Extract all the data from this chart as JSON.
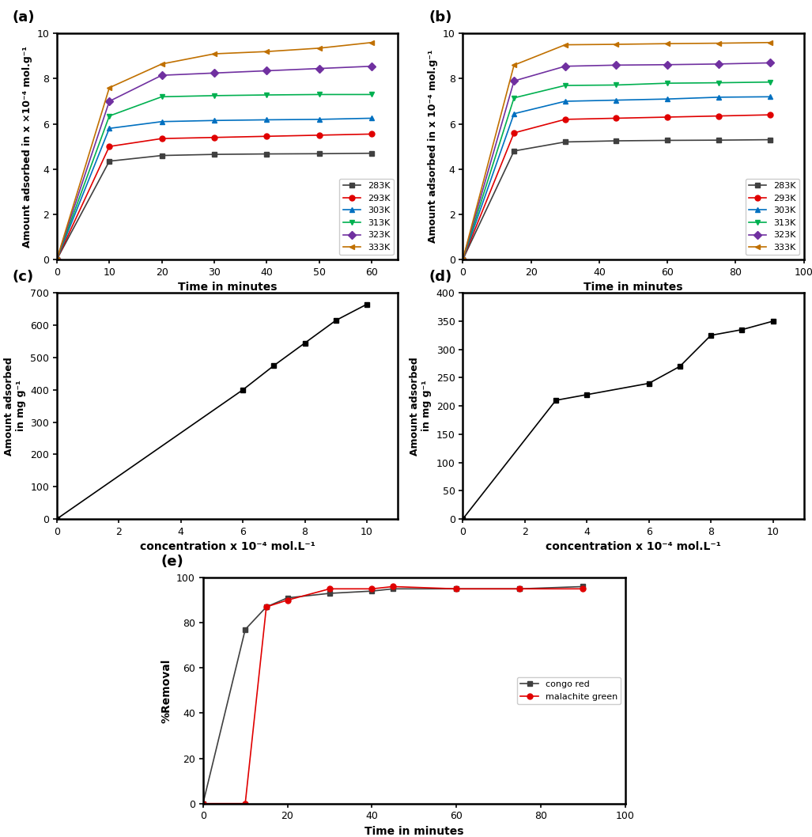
{
  "panel_a": {
    "title": "(a)",
    "xlabel": "Time in minutes",
    "ylabel": "Amount adsorbed in x ×10⁻⁴ mol.g⁻¹",
    "xlim": [
      0,
      65
    ],
    "ylim": [
      0,
      10
    ],
    "xticks": [
      0,
      10,
      20,
      30,
      40,
      50,
      60
    ],
    "yticks": [
      0,
      2,
      4,
      6,
      8,
      10
    ],
    "series": [
      {
        "label": "283K",
        "color": "#404040",
        "marker": "s",
        "x": [
          0,
          10,
          20,
          30,
          40,
          50,
          60
        ],
        "y": [
          0,
          4.35,
          4.6,
          4.65,
          4.67,
          4.68,
          4.7
        ]
      },
      {
        "label": "293K",
        "color": "#e00000",
        "marker": "o",
        "x": [
          0,
          10,
          20,
          30,
          40,
          50,
          60
        ],
        "y": [
          0,
          5.0,
          5.35,
          5.4,
          5.45,
          5.5,
          5.55
        ]
      },
      {
        "label": "303K",
        "color": "#0070c0",
        "marker": "^",
        "x": [
          0,
          10,
          20,
          30,
          40,
          50,
          60
        ],
        "y": [
          0,
          5.8,
          6.1,
          6.15,
          6.18,
          6.2,
          6.25
        ]
      },
      {
        "label": "313K",
        "color": "#00b050",
        "marker": "v",
        "x": [
          0,
          10,
          20,
          30,
          40,
          50,
          60
        ],
        "y": [
          0,
          6.35,
          7.2,
          7.25,
          7.28,
          7.3,
          7.3
        ]
      },
      {
        "label": "323K",
        "color": "#7030a0",
        "marker": "D",
        "x": [
          0,
          10,
          20,
          30,
          40,
          50,
          60
        ],
        "y": [
          0,
          7.0,
          8.15,
          8.25,
          8.35,
          8.45,
          8.55
        ]
      },
      {
        "label": "333K",
        "color": "#c07000",
        "marker": "<",
        "x": [
          0,
          10,
          20,
          30,
          40,
          50,
          60
        ],
        "y": [
          0,
          7.6,
          8.65,
          9.1,
          9.2,
          9.35,
          9.6
        ]
      }
    ]
  },
  "panel_b": {
    "title": "(b)",
    "xlabel": "Time in minutes",
    "ylabel": "Amount adsorbed in x 10⁻⁴ mol.g⁻¹",
    "xlim": [
      0,
      100
    ],
    "ylim": [
      0,
      10
    ],
    "xticks": [
      0,
      20,
      40,
      60,
      80,
      100
    ],
    "yticks": [
      0,
      2,
      4,
      6,
      8,
      10
    ],
    "series": [
      {
        "label": "283K",
        "color": "#404040",
        "marker": "s",
        "x": [
          0,
          15,
          30,
          45,
          60,
          75,
          90
        ],
        "y": [
          0,
          4.8,
          5.2,
          5.25,
          5.27,
          5.28,
          5.3
        ]
      },
      {
        "label": "293K",
        "color": "#e00000",
        "marker": "o",
        "x": [
          0,
          15,
          30,
          45,
          60,
          75,
          90
        ],
        "y": [
          0,
          5.6,
          6.2,
          6.25,
          6.3,
          6.35,
          6.4
        ]
      },
      {
        "label": "303K",
        "color": "#0070c0",
        "marker": "^",
        "x": [
          0,
          15,
          30,
          45,
          60,
          75,
          90
        ],
        "y": [
          0,
          6.45,
          7.0,
          7.05,
          7.1,
          7.18,
          7.2
        ]
      },
      {
        "label": "313K",
        "color": "#00b050",
        "marker": "v",
        "x": [
          0,
          15,
          30,
          45,
          60,
          75,
          90
        ],
        "y": [
          0,
          7.15,
          7.7,
          7.72,
          7.8,
          7.82,
          7.85
        ]
      },
      {
        "label": "323K",
        "color": "#7030a0",
        "marker": "D",
        "x": [
          0,
          15,
          30,
          45,
          60,
          75,
          90
        ],
        "y": [
          0,
          7.9,
          8.55,
          8.6,
          8.62,
          8.65,
          8.7
        ]
      },
      {
        "label": "333K",
        "color": "#c07000",
        "marker": "<",
        "x": [
          0,
          15,
          30,
          45,
          60,
          75,
          90
        ],
        "y": [
          0,
          8.6,
          9.5,
          9.52,
          9.55,
          9.57,
          9.6
        ]
      }
    ]
  },
  "panel_c": {
    "title": "(c)",
    "xlabel": "concentration x 10⁻⁴ mol.L⁻¹",
    "ylabel": "Amount adsorbed in mg g⁻¹",
    "xlim": [
      0,
      11
    ],
    "ylim": [
      0,
      700
    ],
    "xticks": [
      0,
      2,
      4,
      6,
      8,
      10
    ],
    "yticks": [
      0,
      100,
      200,
      300,
      400,
      500,
      600,
      700
    ],
    "x": [
      0,
      6,
      7,
      8,
      9,
      10
    ],
    "y": [
      0,
      400,
      475,
      545,
      615,
      665
    ]
  },
  "panel_d": {
    "title": "(d)",
    "xlabel": "concentration x 10⁻⁴ mol.L⁻¹",
    "ylabel": "Amount adsorbed in mg g⁻¹",
    "xlim": [
      0,
      11
    ],
    "ylim": [
      0,
      400
    ],
    "xticks": [
      0,
      2,
      4,
      6,
      8,
      10
    ],
    "yticks": [
      0,
      50,
      100,
      150,
      200,
      250,
      300,
      350,
      400
    ],
    "x": [
      0,
      3,
      4,
      6,
      7,
      8,
      9,
      10
    ],
    "y": [
      0,
      210,
      220,
      240,
      270,
      325,
      335,
      350
    ]
  },
  "panel_e": {
    "title": "(e)",
    "xlabel": "Time in minutes",
    "ylabel": "%Removal",
    "xlim": [
      0,
      100
    ],
    "ylim": [
      0,
      100
    ],
    "xticks": [
      0,
      20,
      40,
      60,
      80,
      100
    ],
    "yticks": [
      0,
      20,
      40,
      60,
      80,
      100
    ],
    "series": [
      {
        "label": "congo red",
        "color": "#404040",
        "marker": "s",
        "x": [
          0,
          10,
          15,
          20,
          30,
          40,
          45,
          60,
          75,
          90
        ],
        "y": [
          0,
          77,
          87,
          91,
          93,
          94,
          95,
          95,
          95,
          96
        ]
      },
      {
        "label": "malachite green",
        "color": "#e00000",
        "marker": "o",
        "x": [
          0,
          10,
          15,
          20,
          30,
          40,
          45,
          60,
          75,
          90
        ],
        "y": [
          0,
          0,
          87,
          90,
          95,
          95,
          96,
          95,
          95,
          95
        ]
      }
    ]
  }
}
